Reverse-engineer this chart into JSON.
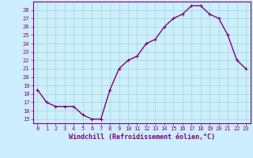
{
  "x": [
    0,
    1,
    2,
    3,
    4,
    5,
    6,
    7,
    8,
    9,
    10,
    11,
    12,
    13,
    14,
    15,
    16,
    17,
    18,
    19,
    20,
    21,
    22,
    23
  ],
  "y": [
    18.5,
    17,
    16.5,
    16.5,
    16.5,
    15.5,
    15,
    15,
    18.5,
    21,
    22,
    22.5,
    24,
    24.5,
    26,
    27,
    27.5,
    28.5,
    28.5,
    27.5,
    27,
    25,
    22,
    21
  ],
  "xlabel": "Windchill (Refroidissement éolien,°C)",
  "line_color": "#800080",
  "marker": "+",
  "background_color": "#cceeff",
  "grid_color": "#aaddcc",
  "ylim": [
    14.5,
    29.0
  ],
  "xlim": [
    -0.5,
    23.5
  ],
  "yticks": [
    15,
    16,
    17,
    18,
    19,
    20,
    21,
    22,
    23,
    24,
    25,
    26,
    27,
    28
  ],
  "xticks": [
    0,
    1,
    2,
    3,
    4,
    5,
    6,
    7,
    8,
    9,
    10,
    11,
    12,
    13,
    14,
    15,
    16,
    17,
    18,
    19,
    20,
    21,
    22,
    23
  ],
  "tick_fontsize": 5,
  "xlabel_fontsize": 6,
  "linewidth": 1.0,
  "markersize": 3,
  "markeredgewidth": 0.8
}
